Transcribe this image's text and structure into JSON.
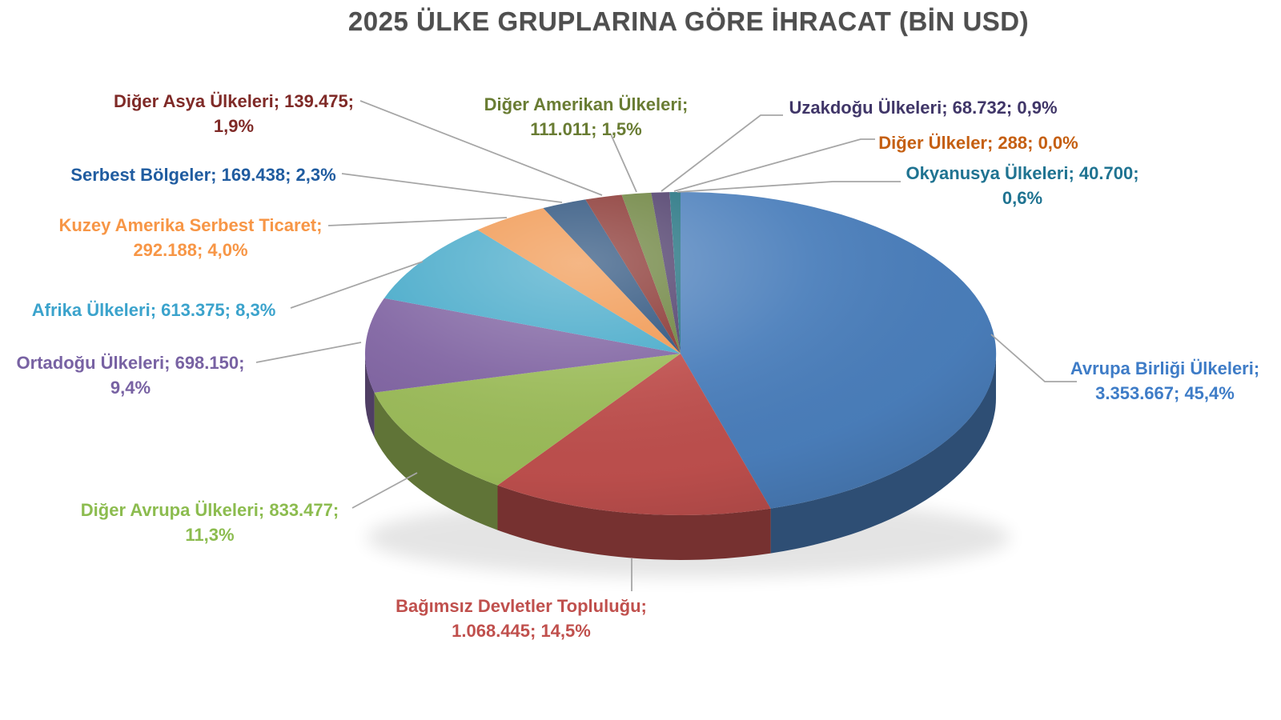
{
  "chart_data": {
    "type": "pie",
    "style": "3d",
    "title": "2025 ÜLKE GRUPLARINA GÖRE İHRACAT (BİN USD)",
    "title_color": "#4f4f4f",
    "unit": "BİN USD",
    "legend": "none",
    "leader_line_color": "#a6a6a6",
    "label_format": "name; value; percent",
    "items": [
      {
        "label": "Avrupa Birliği Ülkeleri",
        "value": 3353667,
        "value_display": "3.353.667",
        "pct": 45.4,
        "pct_display": "45,4%",
        "color": "#4a7ebb",
        "label_color": "#3e7cc7",
        "label_lines": [
          "Avrupa Birliği Ülkeleri;",
          "3.353.667; 45,4%"
        ]
      },
      {
        "label": "Bağımsız Devletler Topluluğu",
        "value": 1068445,
        "value_display": "1.068.445",
        "pct": 14.5,
        "pct_display": "14,5%",
        "color": "#be4f4d",
        "label_color": "#c0504d",
        "label_lines": [
          "Bağımsız Devletler Topluluğu;",
          "1.068.445; 14,5%"
        ]
      },
      {
        "label": "Diğer Avrupa Ülkeleri",
        "value": 833477,
        "value_display": "833.477",
        "pct": 11.3,
        "pct_display": "11,3%",
        "color": "#9bbb59",
        "label_color": "#8cbc4f",
        "label_lines": [
          "Diğer Avrupa Ülkeleri; 833.477;",
          "11,3%"
        ]
      },
      {
        "label": "Ortadoğu Ülkeleri",
        "value": 698150,
        "value_display": "698.150",
        "pct": 9.4,
        "pct_display": "9,4%",
        "color": "#8064a2",
        "label_color": "#7862a3",
        "label_lines": [
          "Ortadoğu Ülkeleri; 698.150;",
          "9,4%"
        ]
      },
      {
        "label": "Afrika Ülkeleri",
        "value": 613375,
        "value_display": "613.375",
        "pct": 8.3,
        "pct_display": "8,3%",
        "color": "#45a9c9",
        "label_color": "#3ba3cc",
        "label_lines": [
          "Afrika Ülkeleri; 613.375; 8,3%"
        ]
      },
      {
        "label": "Kuzey Amerika Serbest Ticaret",
        "value": 292188,
        "value_display": "292.188",
        "pct": 4.0,
        "pct_display": "4,0%",
        "color": "#f0954c",
        "label_color": "#f79646",
        "label_lines": [
          "Kuzey Amerika Serbest Ticaret;",
          "292.188; 4,0%"
        ]
      },
      {
        "label": "Serbest Bölgeler",
        "value": 169438,
        "value_display": "169.438",
        "pct": 2.3,
        "pct_display": "2,3%",
        "color": "#264d79",
        "label_color": "#205ca0",
        "label_lines": [
          "Serbest Bölgeler; 169.438; 2,3%"
        ]
      },
      {
        "label": "Diğer Asya Ülkeleri",
        "value": 139475,
        "value_display": "139.475",
        "pct": 1.9,
        "pct_display": "1,9%",
        "color": "#86302c",
        "label_color": "#7f2a27",
        "label_lines": [
          "Diğer Asya Ülkeleri; 139.475;",
          "1,9%"
        ]
      },
      {
        "label": "Diğer Amerikan Ülkeleri",
        "value": 111011,
        "value_display": "111.011",
        "pct": 1.5,
        "pct_display": "1,5%",
        "color": "#69803a",
        "label_color": "#697c33",
        "label_lines": [
          "Diğer Amerikan Ülkeleri;",
          "111.011; 1,5%"
        ]
      },
      {
        "label": "Uzakdoğu Ülkeleri",
        "value": 68732,
        "value_display": "68.732",
        "pct": 0.9,
        "pct_display": "0,9%",
        "color": "#4b3a68",
        "label_color": "#403668",
        "label_lines": [
          "Uzakdoğu Ülkeleri; 68.732; 0,9%"
        ]
      },
      {
        "label": "Diğer Ülkeler",
        "value": 288,
        "value_display": "288",
        "pct": 0.0,
        "pct_display": "0,0%",
        "color": "#c55a11",
        "label_color": "#c55f11",
        "label_lines": [
          "Diğer Ülkeler; 288; 0,0%"
        ]
      },
      {
        "label": "Okyanusya Ülkeleri",
        "value": 40700,
        "value_display": "40.700",
        "pct": 0.6,
        "pct_display": "0,6%",
        "color": "#1f707e",
        "label_color": "#1f7391",
        "label_lines": [
          "Okyanusya Ülkeleri; 40.700;",
          "0,6%"
        ]
      }
    ]
  }
}
